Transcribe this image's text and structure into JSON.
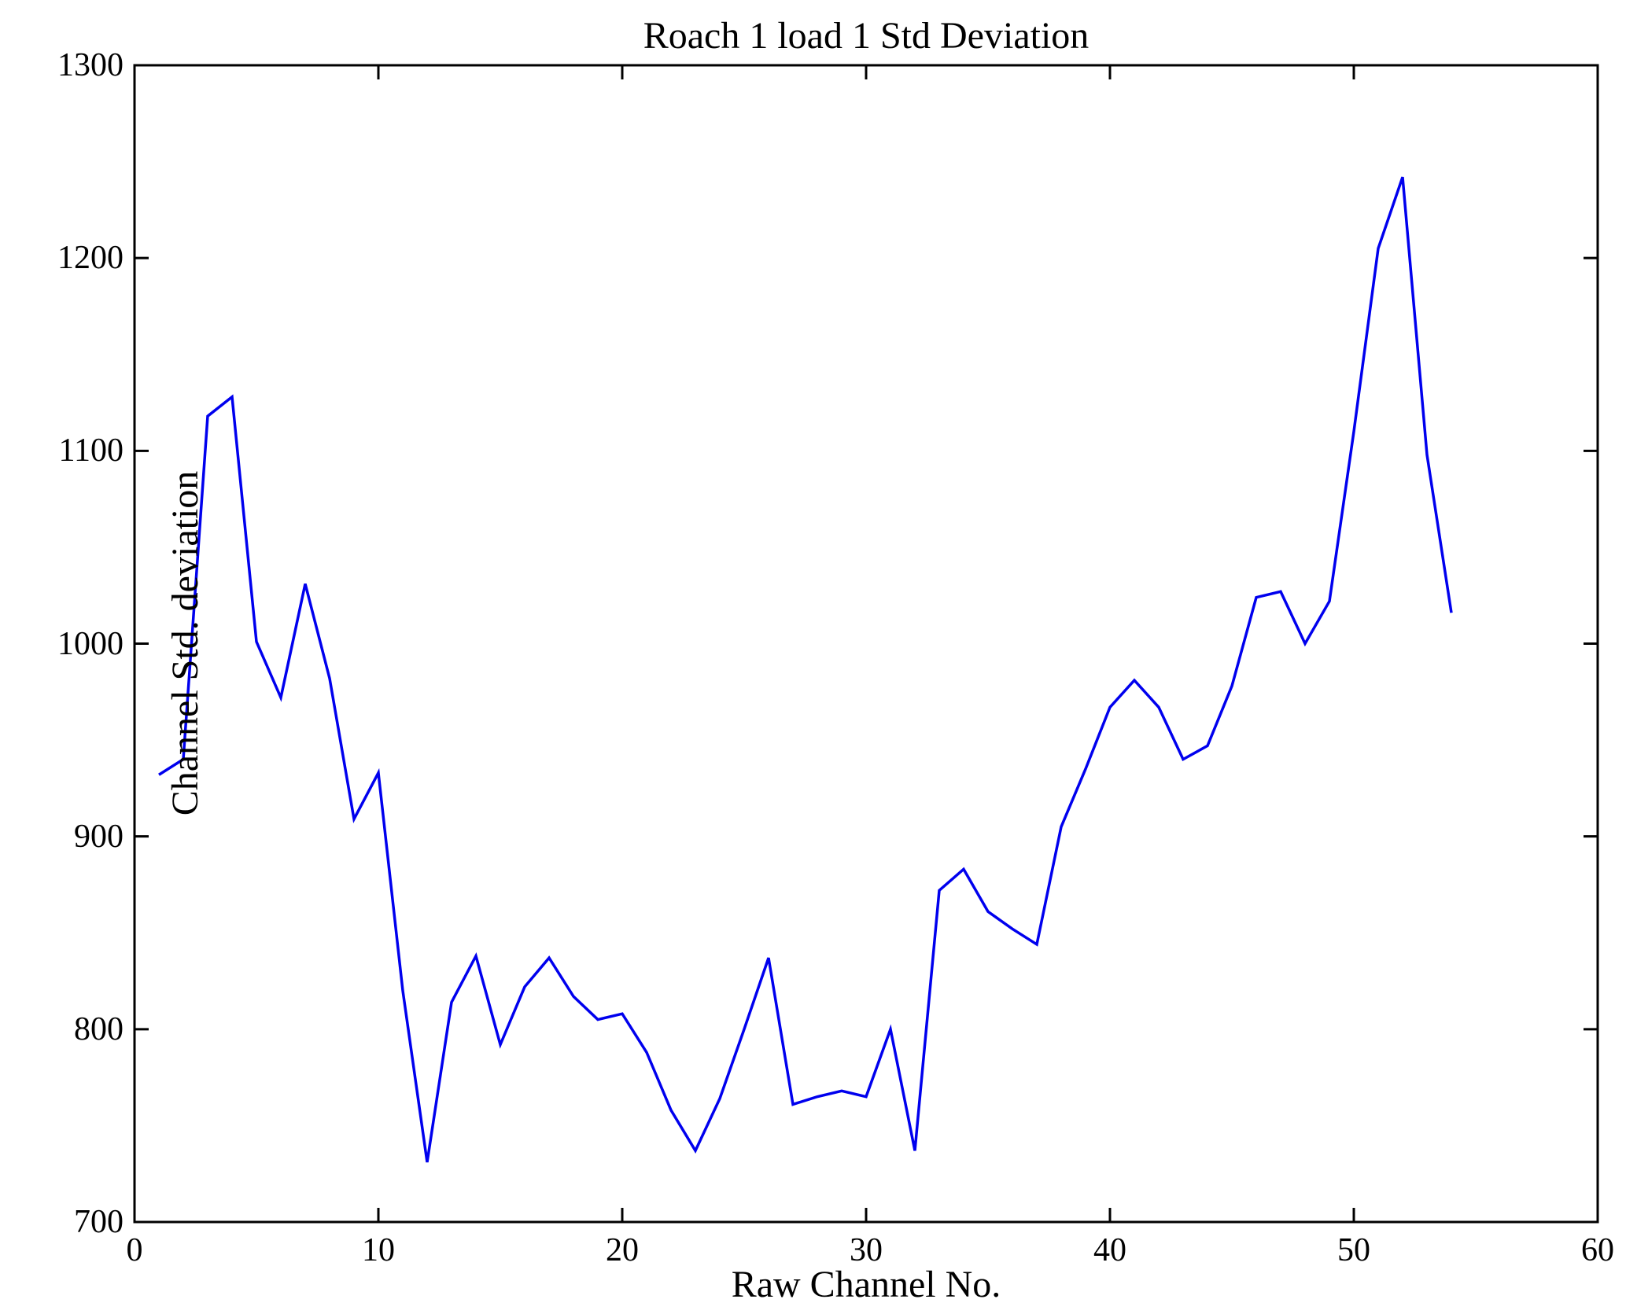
{
  "page": {
    "background_color": "#ffffff",
    "text_color": "#000000"
  },
  "chart_data": {
    "type": "line",
    "title": "Roach 1 load 1 Std Deviation",
    "xlabel": "Raw Channel No.",
    "ylabel": "Channel Std. deviation",
    "xlim": [
      0,
      60
    ],
    "ylim": [
      700,
      1300
    ],
    "x_ticks": [
      0,
      10,
      20,
      30,
      40,
      50,
      60
    ],
    "y_ticks": [
      700,
      800,
      900,
      1000,
      1100,
      1200,
      1300
    ],
    "grid": false,
    "legend": null,
    "box": true,
    "tick_direction": "in",
    "line_color": "#0000ee",
    "axis_color": "#000000",
    "series": [
      {
        "name": "channel-std-deviation",
        "x": [
          1,
          2,
          3,
          4,
          5,
          6,
          7,
          8,
          9,
          10,
          11,
          12,
          13,
          14,
          15,
          16,
          17,
          18,
          19,
          20,
          21,
          22,
          23,
          24,
          25,
          26,
          27,
          28,
          29,
          30,
          31,
          32,
          33,
          34,
          35,
          36,
          37,
          38,
          39,
          40,
          41,
          42,
          43,
          44,
          45,
          46,
          47,
          48,
          49,
          50,
          51,
          52,
          53,
          54
        ],
        "values": [
          932,
          940,
          1118,
          1128,
          1001,
          972,
          1031,
          982,
          909,
          933,
          820,
          731,
          814,
          838,
          792,
          822,
          837,
          817,
          805,
          808,
          788,
          758,
          737,
          764,
          800,
          837,
          761,
          765,
          768,
          765,
          800,
          737,
          872,
          883,
          861,
          852,
          844,
          905,
          935,
          967,
          981,
          967,
          940,
          947,
          978,
          1024,
          1027,
          1000,
          1022,
          1110,
          1205,
          1242,
          1098,
          1016
        ]
      }
    ]
  }
}
